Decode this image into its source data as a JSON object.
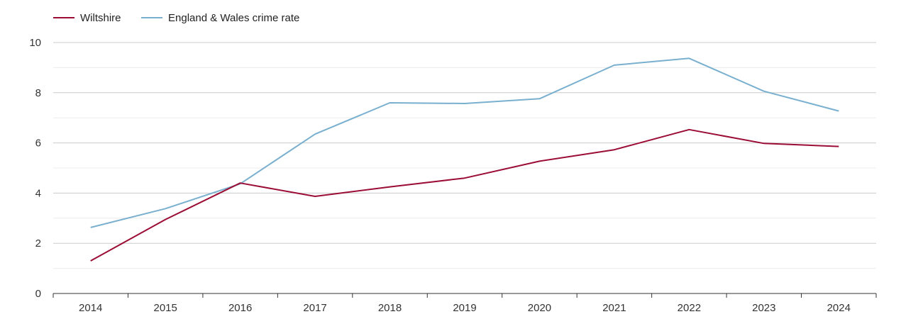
{
  "chart_data": {
    "type": "line",
    "title": "",
    "xlabel": "",
    "ylabel": "",
    "x": [
      "2014",
      "2015",
      "2016",
      "2017",
      "2018",
      "2019",
      "2020",
      "2021",
      "2022",
      "2023",
      "2024"
    ],
    "ylim": [
      0,
      10
    ],
    "yticks": [
      "0",
      "2",
      "4",
      "6",
      "8",
      "10"
    ],
    "grid": true,
    "legend_position": "top-left",
    "series": [
      {
        "name": "Wiltshire",
        "color": "#9b0d35",
        "values": [
          1.3,
          2.95,
          4.4,
          3.87,
          4.25,
          4.6,
          5.27,
          5.73,
          6.53,
          5.98,
          5.86
        ]
      },
      {
        "name": "England & Wales crime rate",
        "color": "#7ab0cf",
        "values": [
          2.63,
          3.38,
          4.37,
          6.35,
          7.6,
          7.57,
          7.76,
          9.1,
          9.37,
          8.06,
          7.27
        ]
      }
    ]
  }
}
